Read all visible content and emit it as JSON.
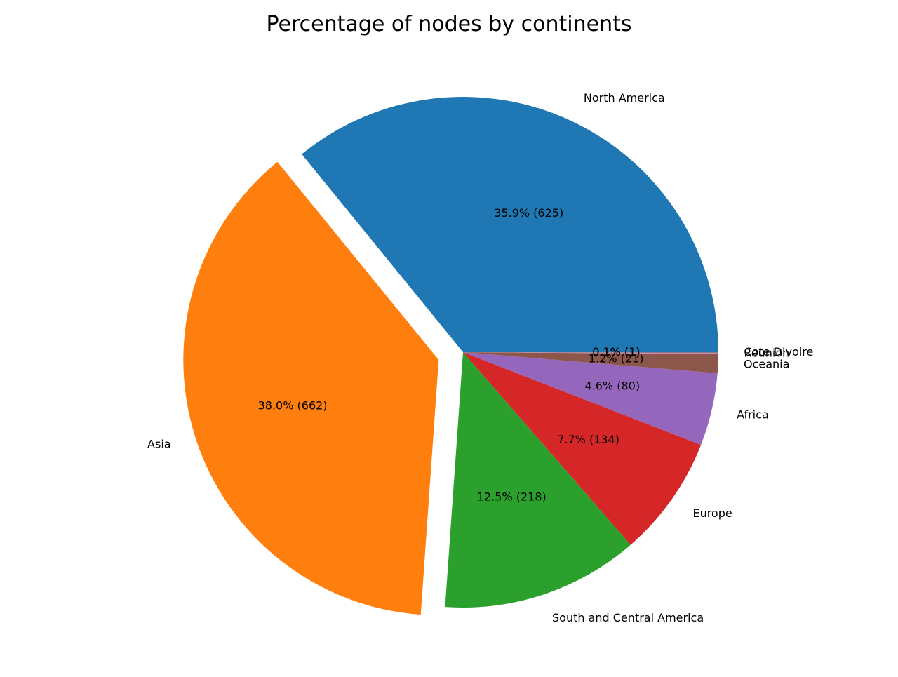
{
  "chart_data": {
    "type": "pie",
    "title": "Percentage of nodes by continents",
    "start_angle_deg": 0,
    "direction": "counterclockwise",
    "exploded": [
      "Asia"
    ],
    "slices": [
      {
        "label": "North America",
        "value": 625,
        "pct_label": "35.9% (625)",
        "color": "#1f77b4"
      },
      {
        "label": "Asia",
        "value": 662,
        "pct_label": "38.0% (662)",
        "color": "#ff7f0e"
      },
      {
        "label": "South and Central America",
        "value": 218,
        "pct_label": "12.5% (218)",
        "color": "#2ca02c"
      },
      {
        "label": "Europe",
        "value": 134,
        "pct_label": "7.7% (134)",
        "color": "#d62728"
      },
      {
        "label": "Africa",
        "value": 80,
        "pct_label": "4.6% (80)",
        "color": "#9467bd"
      },
      {
        "label": "Oceania",
        "value": 21,
        "pct_label": "1.2% (21)",
        "color": "#8c564b"
      },
      {
        "label": "Reunion",
        "value": 1,
        "pct_label": "0.1% (1)",
        "color": "#e377c2"
      },
      {
        "label": "Cote DIvoire",
        "value": 1,
        "pct_label": "0.1% (1)",
        "color": "#7f7f7f"
      }
    ]
  }
}
